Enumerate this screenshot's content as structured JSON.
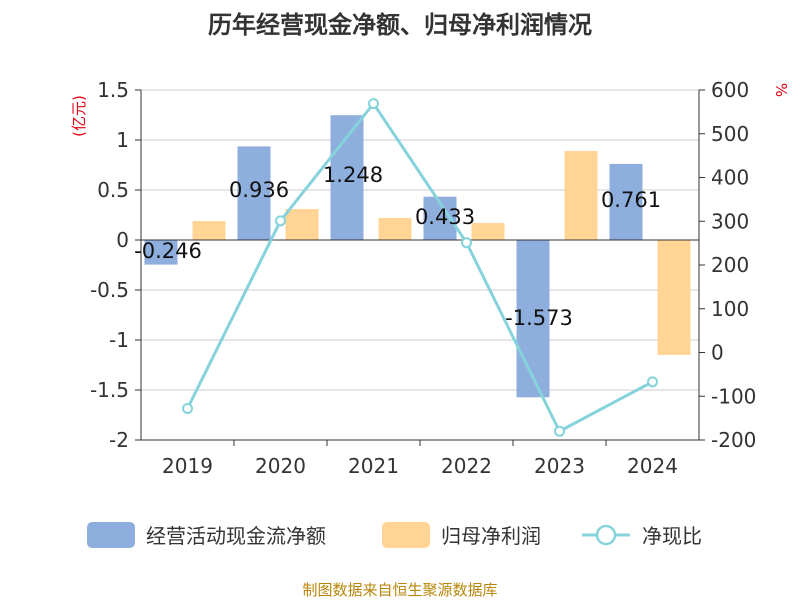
{
  "header": {
    "title": "历年经营现金净额、归母净利润情况"
  },
  "axes": {
    "left_unit": "(亿元)",
    "right_unit": "%"
  },
  "legend": {
    "items": [
      {
        "label": "经营活动现金流净额"
      },
      {
        "label": "归母净利润"
      },
      {
        "label": "净现比"
      }
    ]
  },
  "footer": {
    "source": "制图数据来自恒生聚源数据库"
  },
  "colors": {
    "bar_cash": "#8eaede",
    "bar_profit": "#ffd494",
    "line_ratio": "#86d3dc",
    "grid": "#cccccc",
    "axis": "#333333"
  },
  "chart_data": {
    "type": "bar",
    "title": "历年经营现金净额、归母净利润情况",
    "categories": [
      "2019",
      "2020",
      "2021",
      "2022",
      "2023",
      "2024"
    ],
    "series": [
      {
        "name": "经营活动现金流净额",
        "type": "bar",
        "axis": "left",
        "values": [
          -0.246,
          0.936,
          1.248,
          0.433,
          -1.573,
          0.761
        ],
        "labels": [
          "-0.246",
          "0.936",
          "1.248",
          "0.433",
          "-1.573",
          "0.761"
        ]
      },
      {
        "name": "归母净利润",
        "type": "bar",
        "axis": "left",
        "values": [
          0.19,
          0.31,
          0.22,
          0.17,
          0.89,
          -1.15
        ]
      },
      {
        "name": "净现比",
        "type": "line",
        "axis": "right",
        "values": [
          -128,
          301,
          569,
          251,
          -180,
          -67
        ]
      }
    ],
    "left_axis": {
      "ylim": [
        -2,
        1.5
      ],
      "ticks": [
        "1.5",
        "1",
        "0.5",
        "0",
        "-0.5",
        "-1",
        "-1.5",
        "-2"
      ]
    },
    "right_axis": {
      "ylim": [
        -200,
        600
      ],
      "ticks": [
        "600",
        "500",
        "400",
        "300",
        "200",
        "100",
        "0",
        "-100",
        "-200"
      ]
    },
    "grid": true,
    "legend_position": "bottom"
  }
}
